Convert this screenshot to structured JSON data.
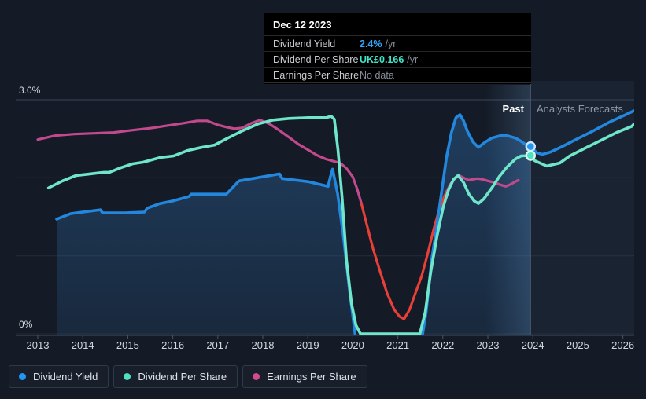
{
  "page": {
    "bg": "#141b27"
  },
  "tooltip": {
    "date": "Dec 12 2023",
    "rows": [
      {
        "label": "Dividend Yield",
        "value": "2.4%",
        "suffix": "/yr",
        "value_color": "#36a3f7"
      },
      {
        "label": "Dividend Per Share",
        "value": "UK£0.166",
        "suffix": "/yr",
        "value_color": "#40e5c8"
      },
      {
        "label": "Earnings Per Share",
        "value": "No data",
        "suffix": "",
        "value_color": "#878e99"
      }
    ]
  },
  "legend": {
    "items": [
      {
        "label": "Dividend Yield",
        "color": "#2196f3"
      },
      {
        "label": "Dividend Per Share",
        "color": "#4fe0c2"
      },
      {
        "label": "Earnings Per Share",
        "color": "#d1498f"
      }
    ]
  },
  "chart_data": {
    "type": "line",
    "title": "",
    "unit": "%",
    "ylim": [
      0,
      3
    ],
    "xlim": [
      2012.5,
      2026.4
    ],
    "y_top_label": "3.0%",
    "y_bottom_label": "0%",
    "x_ticks": [
      2013,
      2014,
      2015,
      2016,
      2017,
      2018,
      2019,
      2020,
      2021,
      2022,
      2023,
      2024,
      2025,
      2026
    ],
    "past_label": "Past",
    "forecast_label": "Analysts Forecasts",
    "divider_year": 2023.95,
    "grid_pcts": [
      0,
      1,
      2,
      3
    ],
    "series": [
      {
        "name": "Dividend Yield",
        "color": "#2388dd",
        "width": 3.6,
        "area": true,
        "points": [
          [
            2013.42,
            1.47
          ],
          [
            2013.73,
            1.54
          ],
          [
            2014.39,
            1.59
          ],
          [
            2014.44,
            1.55
          ],
          [
            2014.94,
            1.55
          ],
          [
            2015.37,
            1.56
          ],
          [
            2015.43,
            1.61
          ],
          [
            2015.72,
            1.67
          ],
          [
            2015.98,
            1.7
          ],
          [
            2016.36,
            1.76
          ],
          [
            2016.41,
            1.79
          ],
          [
            2017.19,
            1.79
          ],
          [
            2017.42,
            1.93
          ],
          [
            2017.47,
            1.96
          ],
          [
            2018.37,
            2.05
          ],
          [
            2018.43,
            1.99
          ],
          [
            2019.01,
            1.95
          ],
          [
            2019.45,
            1.89
          ],
          [
            2019.5,
            2.01
          ],
          [
            2019.55,
            2.11
          ],
          [
            2019.66,
            1.8
          ],
          [
            2019.79,
            1.25
          ],
          [
            2019.93,
            0.54
          ],
          [
            2020.07,
            -0.09
          ],
          [
            2020.31,
            -0.58
          ],
          [
            2020.83,
            -0.78
          ],
          [
            2021.35,
            -0.48
          ],
          [
            2021.54,
            -0.04
          ],
          [
            2021.63,
            0.28
          ],
          [
            2021.75,
            0.94
          ],
          [
            2021.87,
            1.4
          ],
          [
            2021.98,
            1.85
          ],
          [
            2022.08,
            2.26
          ],
          [
            2022.19,
            2.58
          ],
          [
            2022.29,
            2.77
          ],
          [
            2022.38,
            2.81
          ],
          [
            2022.46,
            2.73
          ],
          [
            2022.55,
            2.59
          ],
          [
            2022.67,
            2.46
          ],
          [
            2022.79,
            2.39
          ],
          [
            2022.95,
            2.46
          ],
          [
            2023.09,
            2.51
          ],
          [
            2023.28,
            2.54
          ],
          [
            2023.43,
            2.54
          ],
          [
            2023.61,
            2.51
          ],
          [
            2023.73,
            2.47
          ],
          [
            2023.83,
            2.43
          ],
          [
            2023.95,
            2.4
          ],
          [
            2024.09,
            2.32
          ],
          [
            2024.21,
            2.3
          ],
          [
            2024.39,
            2.33
          ],
          [
            2024.65,
            2.4
          ],
          [
            2024.99,
            2.5
          ],
          [
            2025.34,
            2.6
          ],
          [
            2025.69,
            2.71
          ],
          [
            2026.03,
            2.8
          ],
          [
            2026.25,
            2.86
          ]
        ]
      },
      {
        "name": "Dividend Per Share",
        "color": "#6fe6ca",
        "width": 3.6,
        "points": [
          [
            2013.24,
            1.87
          ],
          [
            2013.55,
            1.96
          ],
          [
            2013.85,
            2.03
          ],
          [
            2014.16,
            2.05
          ],
          [
            2014.47,
            2.07
          ],
          [
            2014.59,
            2.07
          ],
          [
            2014.85,
            2.13
          ],
          [
            2015.11,
            2.18
          ],
          [
            2015.34,
            2.2
          ],
          [
            2015.72,
            2.26
          ],
          [
            2016.02,
            2.28
          ],
          [
            2016.33,
            2.35
          ],
          [
            2016.64,
            2.39
          ],
          [
            2016.93,
            2.42
          ],
          [
            2017.19,
            2.5
          ],
          [
            2017.54,
            2.6
          ],
          [
            2017.89,
            2.69
          ],
          [
            2018.23,
            2.74
          ],
          [
            2018.58,
            2.76
          ],
          [
            2019.01,
            2.77
          ],
          [
            2019.41,
            2.77
          ],
          [
            2019.52,
            2.79
          ],
          [
            2019.59,
            2.75
          ],
          [
            2019.67,
            2.36
          ],
          [
            2019.76,
            1.75
          ],
          [
            2019.86,
            0.94
          ],
          [
            2019.97,
            0.39
          ],
          [
            2020.07,
            0.11
          ],
          [
            2020.17,
            0.0
          ],
          [
            2021.49,
            0.0
          ],
          [
            2021.61,
            0.28
          ],
          [
            2021.73,
            0.79
          ],
          [
            2021.87,
            1.25
          ],
          [
            2022.01,
            1.63
          ],
          [
            2022.13,
            1.85
          ],
          [
            2022.24,
            1.98
          ],
          [
            2022.34,
            2.03
          ],
          [
            2022.46,
            1.94
          ],
          [
            2022.58,
            1.79
          ],
          [
            2022.7,
            1.7
          ],
          [
            2022.79,
            1.67
          ],
          [
            2022.91,
            1.73
          ],
          [
            2023.09,
            1.87
          ],
          [
            2023.26,
            2.02
          ],
          [
            2023.43,
            2.14
          ],
          [
            2023.61,
            2.24
          ],
          [
            2023.74,
            2.28
          ],
          [
            2023.95,
            2.285
          ],
          [
            2024.04,
            2.22
          ],
          [
            2024.31,
            2.15
          ],
          [
            2024.6,
            2.19
          ],
          [
            2024.82,
            2.28
          ],
          [
            2025.16,
            2.38
          ],
          [
            2025.51,
            2.48
          ],
          [
            2025.86,
            2.58
          ],
          [
            2026.2,
            2.66
          ],
          [
            2026.25,
            2.69
          ]
        ]
      },
      {
        "name": "Earnings Per Share",
        "color": "#c2498c",
        "width": 3.2,
        "segments": [
          {
            "color": "#c2498c",
            "points": [
              [
                2013.0,
                2.49
              ],
              [
                2013.38,
                2.54
              ],
              [
                2013.81,
                2.56
              ],
              [
                2014.25,
                2.57
              ],
              [
                2014.68,
                2.58
              ],
              [
                2015.11,
                2.61
              ],
              [
                2015.55,
                2.64
              ],
              [
                2015.89,
                2.67
              ],
              [
                2016.24,
                2.7
              ],
              [
                2016.54,
                2.73
              ],
              [
                2016.76,
                2.73
              ],
              [
                2016.99,
                2.68
              ],
              [
                2017.19,
                2.65
              ],
              [
                2017.37,
                2.63
              ],
              [
                2017.54,
                2.64
              ],
              [
                2017.75,
                2.7
              ],
              [
                2017.94,
                2.74
              ],
              [
                2018.15,
                2.69
              ],
              [
                2018.36,
                2.61
              ],
              [
                2018.58,
                2.52
              ],
              [
                2018.79,
                2.43
              ],
              [
                2019.0,
                2.36
              ],
              [
                2019.2,
                2.29
              ],
              [
                2019.4,
                2.24
              ],
              [
                2019.59,
                2.21
              ],
              [
                2019.72,
                2.19
              ],
              [
                2019.86,
                2.12
              ],
              [
                2020.0,
                2.01
              ],
              [
                2020.1,
                1.85
              ],
              [
                2020.19,
                1.67
              ]
            ]
          },
          {
            "color": "#e83f38",
            "points": [
              [
                2020.19,
                1.67
              ],
              [
                2020.31,
                1.4
              ],
              [
                2020.45,
                1.09
              ],
              [
                2020.61,
                0.79
              ],
              [
                2020.76,
                0.52
              ],
              [
                2020.92,
                0.31
              ],
              [
                2021.04,
                0.22
              ],
              [
                2021.14,
                0.19
              ],
              [
                2021.26,
                0.31
              ],
              [
                2021.39,
                0.52
              ],
              [
                2021.53,
                0.74
              ],
              [
                2021.66,
                1.02
              ],
              [
                2021.8,
                1.35
              ],
              [
                2021.92,
                1.59
              ],
              [
                2022.01,
                1.73
              ],
              [
                2022.08,
                1.82
              ]
            ]
          },
          {
            "color": "#c2498c",
            "points": [
              [
                2022.08,
                1.82
              ],
              [
                2022.17,
                1.92
              ],
              [
                2022.27,
                1.99
              ],
              [
                2022.36,
                2.03
              ],
              [
                2022.46,
                2.0
              ],
              [
                2022.57,
                1.97
              ],
              [
                2022.67,
                1.98
              ],
              [
                2022.77,
                1.99
              ],
              [
                2022.88,
                1.98
              ],
              [
                2023.0,
                1.96
              ],
              [
                2023.14,
                1.94
              ],
              [
                2023.28,
                1.91
              ],
              [
                2023.4,
                1.89
              ],
              [
                2023.52,
                1.92
              ],
              [
                2023.61,
                1.95
              ],
              [
                2023.68,
                1.97
              ]
            ]
          }
        ]
      }
    ],
    "markers": [
      {
        "series": "Dividend Yield",
        "year": 2023.95,
        "pct": 2.4,
        "color": "#2196f3",
        "ring": "#cfe6fa"
      },
      {
        "series": "Dividend Per Share",
        "year": 2023.95,
        "pct": 2.285,
        "color": "#4fe0c2",
        "ring": "#d9f8f0"
      }
    ]
  }
}
